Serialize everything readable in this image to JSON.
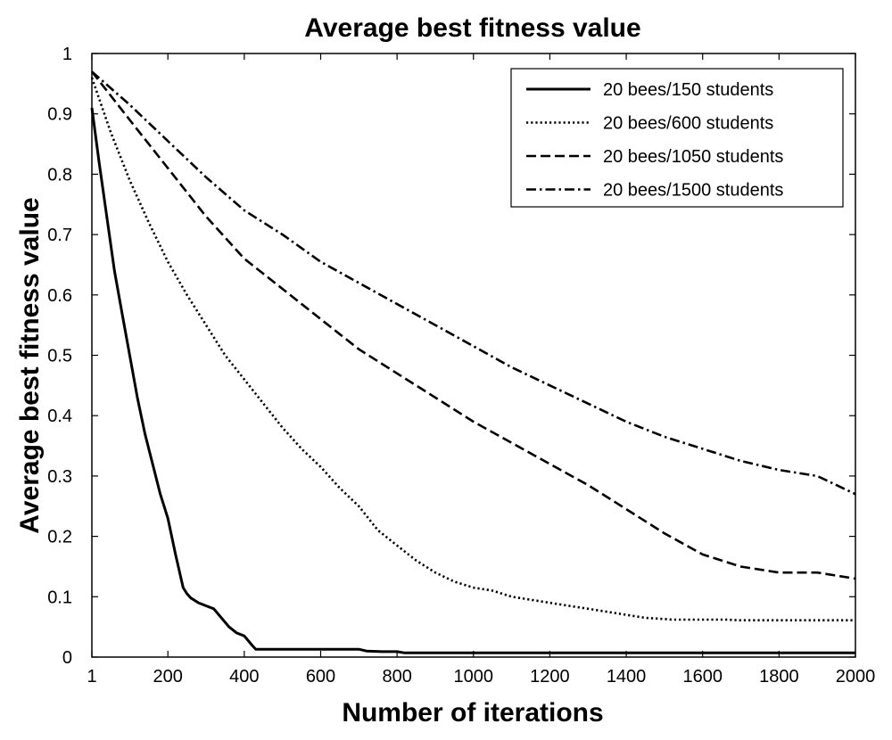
{
  "chart_data": {
    "type": "line",
    "title": "Average best fitness value",
    "xlabel": "Number of iterations",
    "ylabel": "Average best fitness value",
    "xlim": [
      1,
      2000
    ],
    "ylim": [
      0,
      1
    ],
    "xticks": [
      1,
      200,
      400,
      600,
      800,
      1000,
      1200,
      1400,
      1600,
      1800,
      2000
    ],
    "xtick_labels": [
      "1",
      "200",
      "400",
      "600",
      "800",
      "1000",
      "1200",
      "1400",
      "1600",
      "1800",
      "2000"
    ],
    "yticks": [
      0,
      0.1,
      0.2,
      0.3,
      0.4,
      0.5,
      0.6,
      0.7,
      0.8,
      0.9,
      1
    ],
    "ytick_labels": [
      "0",
      "0.1",
      "0.2",
      "0.3",
      "0.4",
      "0.5",
      "0.6",
      "0.7",
      "0.8",
      "0.9",
      "1"
    ],
    "grid": false,
    "legend_position": "top-right",
    "series": [
      {
        "name": "20 bees/150 students",
        "style": "solid",
        "color": "#000000",
        "x": [
          1,
          20,
          40,
          60,
          80,
          100,
          120,
          140,
          160,
          180,
          200,
          220,
          240,
          250,
          260,
          280,
          300,
          320,
          340,
          360,
          380,
          400,
          420,
          430,
          500,
          600,
          700,
          720,
          760,
          800,
          820,
          1000,
          1500,
          2000
        ],
        "y": [
          0.91,
          0.82,
          0.73,
          0.64,
          0.57,
          0.5,
          0.43,
          0.37,
          0.32,
          0.27,
          0.23,
          0.17,
          0.115,
          0.105,
          0.098,
          0.09,
          0.085,
          0.08,
          0.065,
          0.05,
          0.04,
          0.035,
          0.02,
          0.013,
          0.013,
          0.013,
          0.013,
          0.01,
          0.009,
          0.009,
          0.007,
          0.007,
          0.007,
          0.007
        ]
      },
      {
        "name": "20 bees/600 students",
        "style": "dotted",
        "color": "#000000",
        "x": [
          1,
          50,
          100,
          150,
          200,
          250,
          300,
          350,
          400,
          450,
          500,
          550,
          600,
          650,
          700,
          750,
          800,
          850,
          900,
          950,
          1000,
          1050,
          1100,
          1150,
          1200,
          1250,
          1300,
          1350,
          1400,
          1450,
          1500,
          1520,
          1600,
          1660,
          1700,
          1800,
          1900,
          2000
        ],
        "y": [
          0.96,
          0.87,
          0.79,
          0.72,
          0.655,
          0.6,
          0.55,
          0.5,
          0.46,
          0.42,
          0.38,
          0.345,
          0.315,
          0.28,
          0.25,
          0.21,
          0.185,
          0.16,
          0.14,
          0.125,
          0.115,
          0.11,
          0.1,
          0.095,
          0.09,
          0.085,
          0.08,
          0.075,
          0.07,
          0.065,
          0.063,
          0.062,
          0.062,
          0.062,
          0.061,
          0.061,
          0.061,
          0.061
        ]
      },
      {
        "name": "20 bees/1050 students",
        "style": "dashed",
        "color": "#000000",
        "x": [
          1,
          100,
          200,
          300,
          400,
          500,
          600,
          700,
          800,
          900,
          1000,
          1100,
          1200,
          1300,
          1400,
          1500,
          1600,
          1700,
          1800,
          1900,
          2000
        ],
        "y": [
          0.97,
          0.89,
          0.81,
          0.73,
          0.66,
          0.61,
          0.56,
          0.51,
          0.47,
          0.43,
          0.39,
          0.355,
          0.32,
          0.285,
          0.245,
          0.205,
          0.17,
          0.15,
          0.14,
          0.14,
          0.13
        ]
      },
      {
        "name": "20 bees/1500 students",
        "style": "dashdot",
        "color": "#000000",
        "x": [
          1,
          100,
          200,
          300,
          400,
          500,
          600,
          700,
          800,
          900,
          1000,
          1100,
          1200,
          1300,
          1400,
          1500,
          1600,
          1700,
          1800,
          1900,
          2000
        ],
        "y": [
          0.97,
          0.915,
          0.855,
          0.795,
          0.74,
          0.7,
          0.655,
          0.62,
          0.585,
          0.55,
          0.515,
          0.48,
          0.45,
          0.42,
          0.39,
          0.365,
          0.345,
          0.325,
          0.31,
          0.3,
          0.27
        ]
      }
    ]
  }
}
